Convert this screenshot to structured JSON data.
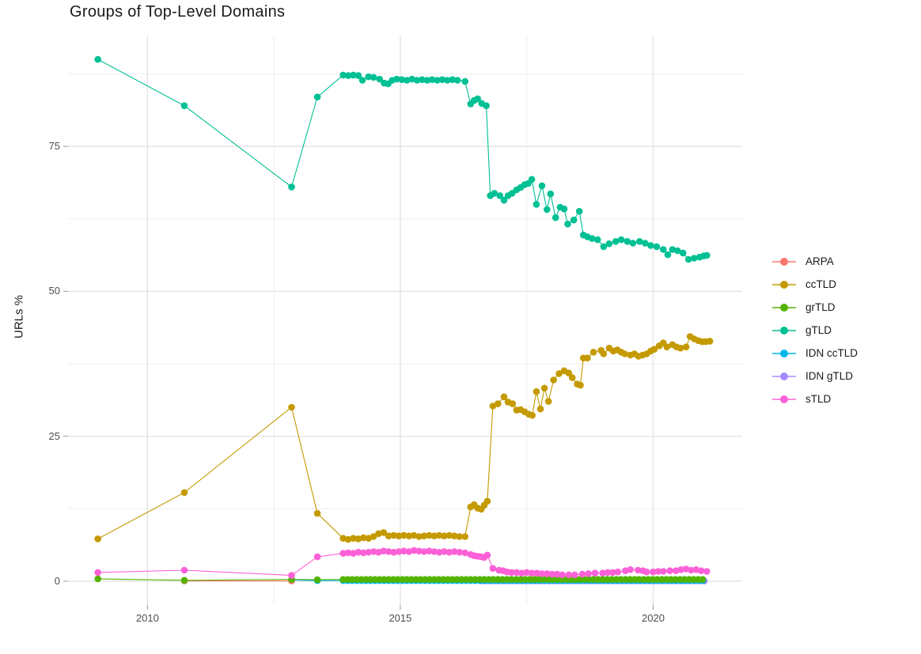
{
  "chart_data": {
    "type": "scatter",
    "title": "Groups of Top-Level Domains",
    "xlabel": "",
    "ylabel": "URLs %",
    "grid": "major-and-minor",
    "legend_position": "right-center",
    "x_ticks": [
      2010,
      2015,
      2020
    ],
    "x_minor_ticks": [
      2012.5,
      2017.5
    ],
    "y_ticks": [
      0,
      25,
      50,
      75
    ],
    "y_minor_ticks": [
      12.5,
      37.5,
      62.5,
      87.5
    ],
    "x_range": [
      2008.43,
      2021.76
    ],
    "y_range": [
      -4.1,
      94.1
    ],
    "draw_order": [
      "IDN gTLD",
      "IDN ccTLD",
      "ARPA",
      "grTLD",
      "sTLD",
      "ccTLD",
      "gTLD"
    ],
    "series": [
      {
        "name": "ARPA",
        "color": "#F8766D",
        "points": [
          [
            2010.73,
            0.05
          ],
          [
            2012.85,
            0.05
          ]
        ]
      },
      {
        "name": "ccTLD",
        "color": "#C49A00",
        "points": [
          [
            2009.02,
            7.3
          ],
          [
            2010.73,
            15.3
          ],
          [
            2012.85,
            30
          ],
          [
            2013.36,
            11.7
          ],
          [
            2013.87,
            7.4
          ],
          [
            2013.97,
            7.2
          ],
          [
            2014.07,
            7.4
          ],
          [
            2014.17,
            7.3
          ],
          [
            2014.27,
            7.5
          ],
          [
            2014.37,
            7.4
          ],
          [
            2014.47,
            7.7
          ],
          [
            2014.57,
            8.2
          ],
          [
            2014.67,
            8.4
          ],
          [
            2014.77,
            7.8
          ],
          [
            2014.87,
            7.9
          ],
          [
            2014.97,
            7.8
          ],
          [
            2015.07,
            7.9
          ],
          [
            2015.17,
            7.8
          ],
          [
            2015.27,
            7.9
          ],
          [
            2015.37,
            7.7
          ],
          [
            2015.47,
            7.8
          ],
          [
            2015.57,
            7.9
          ],
          [
            2015.67,
            7.8
          ],
          [
            2015.77,
            7.9
          ],
          [
            2015.87,
            7.8
          ],
          [
            2015.97,
            7.9
          ],
          [
            2016.07,
            7.8
          ],
          [
            2016.17,
            7.7
          ],
          [
            2016.28,
            7.7
          ],
          [
            2016.39,
            12.8
          ],
          [
            2016.46,
            13.2
          ],
          [
            2016.53,
            12.6
          ],
          [
            2016.6,
            12.4
          ],
          [
            2016.66,
            13.1
          ],
          [
            2016.72,
            13.8
          ],
          [
            2016.83,
            30.2
          ],
          [
            2016.93,
            30.6
          ],
          [
            2017.05,
            31.8
          ],
          [
            2017.13,
            30.9
          ],
          [
            2017.22,
            30.6
          ],
          [
            2017.3,
            29.5
          ],
          [
            2017.38,
            29.6
          ],
          [
            2017.46,
            29.2
          ],
          [
            2017.54,
            28.8
          ],
          [
            2017.61,
            28.6
          ],
          [
            2017.69,
            32.7
          ],
          [
            2017.77,
            29.7
          ],
          [
            2017.85,
            33.3
          ],
          [
            2017.93,
            31.0
          ],
          [
            2018.03,
            34.7
          ],
          [
            2018.14,
            35.8
          ],
          [
            2018.24,
            36.3
          ],
          [
            2018.33,
            35.9
          ],
          [
            2018.4,
            35.1
          ],
          [
            2018.5,
            34.0
          ],
          [
            2018.56,
            33.8
          ],
          [
            2018.62,
            38.5
          ],
          [
            2018.7,
            38.5
          ],
          [
            2018.82,
            39.5
          ],
          [
            2018.97,
            39.8
          ],
          [
            2019.02,
            39.2
          ],
          [
            2019.13,
            40.2
          ],
          [
            2019.21,
            39.7
          ],
          [
            2019.29,
            39.9
          ],
          [
            2019.37,
            39.5
          ],
          [
            2019.44,
            39.2
          ],
          [
            2019.55,
            39.0
          ],
          [
            2019.63,
            39.2
          ],
          [
            2019.71,
            38.8
          ],
          [
            2019.79,
            39.0
          ],
          [
            2019.87,
            39.2
          ],
          [
            2019.95,
            39.7
          ],
          [
            2020.02,
            40.0
          ],
          [
            2020.12,
            40.6
          ],
          [
            2020.2,
            41.1
          ],
          [
            2020.27,
            40.4
          ],
          [
            2020.38,
            40.8
          ],
          [
            2020.46,
            40.4
          ],
          [
            2020.54,
            40.2
          ],
          [
            2020.65,
            40.4
          ],
          [
            2020.73,
            42.2
          ],
          [
            2020.81,
            41.8
          ],
          [
            2020.89,
            41.5
          ],
          [
            2020.97,
            41.3
          ],
          [
            2021.04,
            41.3
          ],
          [
            2021.12,
            41.4
          ]
        ]
      },
      {
        "name": "grTLD",
        "color": "#53B400",
        "points": [
          [
            2009.02,
            0.4
          ],
          [
            2010.73,
            0.15
          ],
          [
            2012.85,
            0.3
          ],
          [
            2013.36,
            0.25
          ]
        ],
        "dense": {
          "from": 2013.87,
          "to": 2021.06,
          "step": 0.09,
          "y": 0.3
        }
      },
      {
        "name": "gTLD",
        "color": "#00C094",
        "points": [
          [
            2009.02,
            90
          ],
          [
            2010.73,
            82
          ],
          [
            2012.85,
            68
          ],
          [
            2013.36,
            83.5
          ],
          [
            2013.87,
            87.3
          ],
          [
            2013.97,
            87.2
          ],
          [
            2014.07,
            87.3
          ],
          [
            2014.17,
            87.2
          ],
          [
            2014.25,
            86.4
          ],
          [
            2014.37,
            87.0
          ],
          [
            2014.47,
            86.9
          ],
          [
            2014.59,
            86.6
          ],
          [
            2014.68,
            85.9
          ],
          [
            2014.76,
            85.8
          ],
          [
            2014.84,
            86.4
          ],
          [
            2014.93,
            86.6
          ],
          [
            2015.03,
            86.5
          ],
          [
            2015.13,
            86.4
          ],
          [
            2015.23,
            86.6
          ],
          [
            2015.33,
            86.4
          ],
          [
            2015.43,
            86.5
          ],
          [
            2015.53,
            86.4
          ],
          [
            2015.63,
            86.5
          ],
          [
            2015.73,
            86.4
          ],
          [
            2015.83,
            86.5
          ],
          [
            2015.93,
            86.4
          ],
          [
            2016.03,
            86.5
          ],
          [
            2016.13,
            86.4
          ],
          [
            2016.28,
            86.2
          ],
          [
            2016.39,
            82.3
          ],
          [
            2016.46,
            82.9
          ],
          [
            2016.53,
            83.2
          ],
          [
            2016.61,
            82.4
          ],
          [
            2016.7,
            82.0
          ],
          [
            2016.78,
            66.5
          ],
          [
            2016.86,
            66.9
          ],
          [
            2016.97,
            66.5
          ],
          [
            2017.05,
            65.7
          ],
          [
            2017.13,
            66.5
          ],
          [
            2017.21,
            66.9
          ],
          [
            2017.3,
            67.5
          ],
          [
            2017.38,
            67.9
          ],
          [
            2017.46,
            68.4
          ],
          [
            2017.53,
            68.6
          ],
          [
            2017.6,
            69.3
          ],
          [
            2017.69,
            65.0
          ],
          [
            2017.8,
            68.2
          ],
          [
            2017.9,
            64.1
          ],
          [
            2017.97,
            66.8
          ],
          [
            2018.07,
            62.7
          ],
          [
            2018.16,
            64.5
          ],
          [
            2018.24,
            64.2
          ],
          [
            2018.31,
            61.6
          ],
          [
            2018.43,
            62.3
          ],
          [
            2018.54,
            63.8
          ],
          [
            2018.62,
            59.7
          ],
          [
            2018.7,
            59.4
          ],
          [
            2018.79,
            59.1
          ],
          [
            2018.9,
            58.9
          ],
          [
            2019.02,
            57.7
          ],
          [
            2019.13,
            58.2
          ],
          [
            2019.26,
            58.6
          ],
          [
            2019.37,
            58.9
          ],
          [
            2019.49,
            58.6
          ],
          [
            2019.6,
            58.3
          ],
          [
            2019.73,
            58.6
          ],
          [
            2019.84,
            58.3
          ],
          [
            2019.95,
            57.9
          ],
          [
            2020.07,
            57.7
          ],
          [
            2020.2,
            57.2
          ],
          [
            2020.29,
            56.3
          ],
          [
            2020.38,
            57.2
          ],
          [
            2020.48,
            57.0
          ],
          [
            2020.59,
            56.6
          ],
          [
            2020.7,
            55.5
          ],
          [
            2020.81,
            55.7
          ],
          [
            2020.92,
            55.9
          ],
          [
            2021.0,
            56.1
          ],
          [
            2021.06,
            56.2
          ]
        ]
      },
      {
        "name": "IDN ccTLD",
        "color": "#00B6EB",
        "points": [
          [
            2012.85,
            0.2
          ],
          [
            2013.36,
            0.1
          ]
        ],
        "dense": {
          "from": 2013.87,
          "to": 2021.06,
          "step": 0.09,
          "y": 0.1
        }
      },
      {
        "name": "IDN gTLD",
        "color": "#A58AFF",
        "points": [],
        "dense": {
          "from": 2016.6,
          "to": 2021.06,
          "step": 0.09,
          "y": 0.05
        }
      },
      {
        "name": "sTLD",
        "color": "#FB61D7",
        "points": [
          [
            2009.02,
            1.5
          ],
          [
            2010.73,
            1.9
          ],
          [
            2012.85,
            1.0
          ],
          [
            2013.36,
            4.2
          ],
          [
            2013.87,
            4.8
          ],
          [
            2013.97,
            4.9
          ],
          [
            2014.07,
            4.8
          ],
          [
            2014.17,
            5.0
          ],
          [
            2014.27,
            4.9
          ],
          [
            2014.37,
            5.0
          ],
          [
            2014.47,
            5.1
          ],
          [
            2014.57,
            5.0
          ],
          [
            2014.67,
            5.2
          ],
          [
            2014.77,
            5.1
          ],
          [
            2014.87,
            5.0
          ],
          [
            2014.97,
            5.1
          ],
          [
            2015.07,
            5.2
          ],
          [
            2015.17,
            5.1
          ],
          [
            2015.27,
            5.3
          ],
          [
            2015.37,
            5.2
          ],
          [
            2015.47,
            5.1
          ],
          [
            2015.57,
            5.2
          ],
          [
            2015.67,
            5.1
          ],
          [
            2015.77,
            5.0
          ],
          [
            2015.87,
            5.1
          ],
          [
            2015.97,
            5.0
          ],
          [
            2016.07,
            5.1
          ],
          [
            2016.17,
            5.0
          ],
          [
            2016.28,
            4.9
          ],
          [
            2016.39,
            4.6
          ],
          [
            2016.46,
            4.4
          ],
          [
            2016.53,
            4.3
          ],
          [
            2016.6,
            4.2
          ],
          [
            2016.66,
            4.1
          ],
          [
            2016.72,
            4.5
          ],
          [
            2016.83,
            2.2
          ],
          [
            2016.95,
            1.9
          ],
          [
            2017.03,
            1.8
          ],
          [
            2017.11,
            1.6
          ],
          [
            2017.2,
            1.5
          ],
          [
            2017.3,
            1.5
          ],
          [
            2017.4,
            1.4
          ],
          [
            2017.5,
            1.5
          ],
          [
            2017.6,
            1.4
          ],
          [
            2017.7,
            1.4
          ],
          [
            2017.8,
            1.3
          ],
          [
            2017.9,
            1.3
          ],
          [
            2018.0,
            1.2
          ],
          [
            2018.1,
            1.2
          ],
          [
            2018.2,
            1.1
          ],
          [
            2018.33,
            1.1
          ],
          [
            2018.45,
            1.1
          ],
          [
            2018.6,
            1.2
          ],
          [
            2018.72,
            1.3
          ],
          [
            2018.85,
            1.4
          ],
          [
            2019.0,
            1.4
          ],
          [
            2019.1,
            1.5
          ],
          [
            2019.2,
            1.5
          ],
          [
            2019.3,
            1.6
          ],
          [
            2019.45,
            1.8
          ],
          [
            2019.55,
            2.0
          ],
          [
            2019.7,
            1.9
          ],
          [
            2019.8,
            1.8
          ],
          [
            2019.87,
            1.6
          ],
          [
            2020.0,
            1.6
          ],
          [
            2020.1,
            1.7
          ],
          [
            2020.2,
            1.7
          ],
          [
            2020.33,
            1.8
          ],
          [
            2020.45,
            1.8
          ],
          [
            2020.55,
            2.0
          ],
          [
            2020.65,
            2.1
          ],
          [
            2020.75,
            1.9
          ],
          [
            2020.85,
            2.0
          ],
          [
            2020.95,
            1.8
          ],
          [
            2021.06,
            1.7
          ]
        ]
      }
    ],
    "style": {
      "major_grid_color": "#E2E2E2",
      "minor_grid_color": "#EFEFEF",
      "tick_mark_color": "#9a9a9a",
      "tick_label_color": "#4d4d4d",
      "point_radius": 4.3,
      "line_width": 1.1
    }
  }
}
